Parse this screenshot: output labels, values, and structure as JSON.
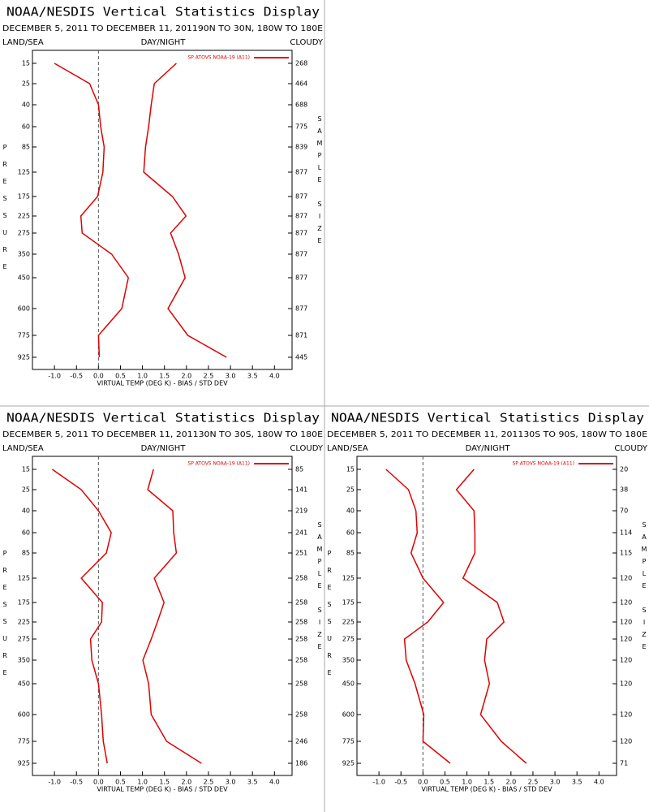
{
  "chart_data": [
    {
      "type": "line",
      "title": "NOAA/NESDIS Vertical Statistics Display",
      "subtitle": "DECEMBER 5, 2011 TO DECEMBER 11, 201190N TO 30N, 180W TO 180E",
      "land_sea": "LAND/SEA",
      "day_night": "DAY/NIGHT",
      "cloudy": "CLOUDY",
      "y_label": "PRESSURE",
      "y2_label": "SAMPLE SIZE",
      "x_label": "VIRTUAL TEMP (DEG K) - BIAS / STD DEV",
      "categories": [
        "15",
        "25",
        "40",
        "60",
        "85",
        "125",
        "175",
        "225",
        "275",
        "350",
        "450",
        "600",
        "775",
        "925"
      ],
      "sample_size": [
        268,
        464,
        688,
        775,
        839,
        877,
        877,
        877,
        877,
        877,
        877,
        877,
        871,
        445
      ],
      "series": [
        {
          "name": "SP ATOVS NOAA-19 (A11)",
          "color": "#e00000",
          "values": [
            -1.0,
            -0.2,
            0.0,
            0.05,
            0.13,
            0.1,
            -0.02,
            -0.4,
            -0.37,
            0.3,
            0.68,
            0.53,
            0.0,
            0.02
          ],
          "std_dev": [
            1.77,
            1.27,
            1.2,
            1.14,
            1.07,
            1.03,
            1.68,
            1.99,
            1.64,
            1.82,
            1.97,
            1.58,
            2.03,
            2.91
          ]
        }
      ],
      "xlim": [
        -1.5,
        4.4
      ],
      "xticks": [
        {
          "value": -1,
          "label": "-1.0"
        },
        -0.5,
        {
          "value": 0,
          "label": "0.0"
        },
        0.5,
        {
          "value": 1,
          "label": "1.0"
        },
        1.5,
        {
          "value": 2,
          "label": "2.0"
        },
        2.5,
        {
          "value": 3,
          "label": "3.0"
        },
        3.5,
        {
          "value": 4,
          "label": "4.0"
        }
      ]
    },
    {
      "type": "line",
      "title": "NOAA/NESDIS Vertical Statistics Display",
      "subtitle": "DECEMBER 5, 2011 TO DECEMBER 11, 201130N TO 30S, 180W TO 180E",
      "land_sea": "LAND/SEA",
      "day_night": "DAY/NIGHT",
      "cloudy": "CLOUDY",
      "y_label": "PRESSURE",
      "y2_label": "SAMPLE SIZE",
      "x_label": "VIRTUAL TEMP (DEG K) - BIAS / STD DEV",
      "categories": [
        "15",
        "25",
        "40",
        "60",
        "85",
        "125",
        "175",
        "225",
        "275",
        "350",
        "450",
        "600",
        "775",
        "925"
      ],
      "sample_size": [
        85,
        141,
        219,
        241,
        251,
        258,
        258,
        258,
        258,
        258,
        258,
        258,
        246,
        186
      ],
      "series": [
        {
          "name": "SP ATOVS NOAA-19 (A11)",
          "color": "#e00000",
          "values": [
            -1.05,
            -0.39,
            0.0,
            0.29,
            0.18,
            -0.39,
            0.09,
            0.07,
            -0.18,
            -0.15,
            0.0,
            0.07,
            0.11,
            0.2
          ],
          "std_dev": [
            1.25,
            1.12,
            1.69,
            1.71,
            1.77,
            1.27,
            1.49,
            1.34,
            1.2,
            1.01,
            1.14,
            1.2,
            1.55,
            2.34
          ]
        }
      ],
      "xlim": [
        -1.5,
        4.4
      ],
      "xticks": [
        {
          "value": -1,
          "label": "-1.0"
        },
        -0.5,
        {
          "value": 0,
          "label": "0.0"
        },
        0.5,
        {
          "value": 1,
          "label": "1.0"
        },
        1.5,
        {
          "value": 2,
          "label": "2.0"
        },
        2.5,
        {
          "value": 3,
          "label": "3.0"
        },
        3.5,
        {
          "value": 4,
          "label": "4.0"
        }
      ]
    },
    {
      "type": "line",
      "title": "NOAA/NESDIS Vertical Statistics Display",
      "subtitle": "DECEMBER 5, 2011 TO DECEMBER 11, 201130S TO 90S, 180W TO 180E",
      "land_sea": "LAND/SEA",
      "day_night": "DAY/NIGHT",
      "cloudy": "CLOUDY",
      "y_label": "PRESSURE",
      "y2_label": "SAMPLE SIZE",
      "x_label": "VIRTUAL TEMP (DEG K) - BIAS / STD DEV",
      "categories": [
        "15",
        "25",
        "40",
        "60",
        "85",
        "125",
        "175",
        "225",
        "275",
        "350",
        "450",
        "600",
        "775",
        "925"
      ],
      "sample_size": [
        20,
        38,
        70,
        114,
        115,
        120,
        120,
        120,
        120,
        120,
        120,
        120,
        120,
        71
      ],
      "series": [
        {
          "name": "SP ATOVS NOAA-19 (A11)",
          "color": "#e00000",
          "values": [
            -0.84,
            -0.33,
            -0.16,
            -0.13,
            -0.27,
            0.0,
            0.47,
            0.11,
            -0.42,
            -0.38,
            -0.18,
            0.02,
            0.0,
            0.62
          ],
          "std_dev": [
            1.16,
            0.76,
            1.16,
            1.18,
            1.18,
            0.91,
            1.69,
            1.84,
            1.45,
            1.4,
            1.51,
            1.31,
            1.78,
            2.35
          ]
        }
      ],
      "xlim": [
        -1.5,
        4.4
      ],
      "xticks": [
        {
          "value": -1,
          "label": "-1.0"
        },
        -0.5,
        {
          "value": 0,
          "label": "0.0"
        },
        0.5,
        {
          "value": 1,
          "label": "1.0"
        },
        1.5,
        {
          "value": 2,
          "label": "2.0"
        },
        2.5,
        {
          "value": 3,
          "label": "3.0"
        },
        3.5,
        {
          "value": 4,
          "label": "4.0"
        }
      ]
    }
  ]
}
